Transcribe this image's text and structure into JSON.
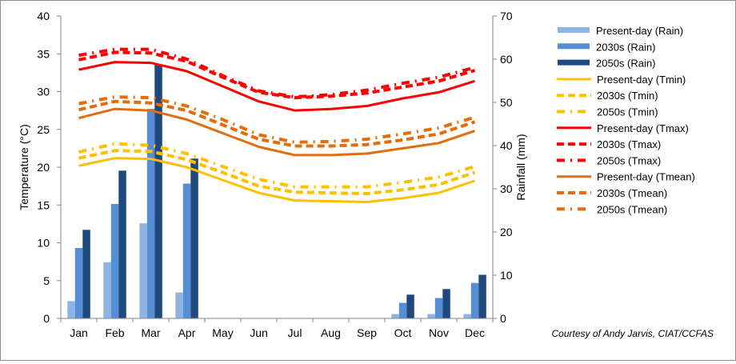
{
  "chart_data": {
    "type": "bar+line",
    "title": "",
    "categories": [
      "Jan",
      "Feb",
      "Mar",
      "Apr",
      "May",
      "Jun",
      "Jul",
      "Aug",
      "Sep",
      "Oct",
      "Nov",
      "Dec"
    ],
    "left_axis": {
      "label": "Temperature (°C)",
      "ylim": [
        0,
        40
      ],
      "ticks": [
        0,
        5,
        10,
        15,
        20,
        25,
        30,
        35,
        40
      ]
    },
    "right_axis": {
      "label": "Rainfall (mm)",
      "ylim": [
        0,
        70
      ],
      "ticks": [
        0,
        10,
        20,
        30,
        40,
        50,
        60,
        70
      ]
    },
    "grid": false,
    "legend_position": "right",
    "bar_series": [
      {
        "name": "Present-day (Rain)",
        "color": "#8db4e2",
        "axis": "right",
        "values": [
          4.0,
          13.0,
          22.0,
          6.0,
          0,
          0,
          0,
          0,
          0,
          1.0,
          1.0,
          1.0
        ]
      },
      {
        "name": "2030s (Rain)",
        "color": "#558ed5",
        "axis": "right",
        "values": [
          16.3,
          26.5,
          48.5,
          31.2,
          0,
          0,
          0,
          0,
          0,
          3.6,
          4.7,
          8.2
        ]
      },
      {
        "name": "2050s (Rain)",
        "color": "#1f497d",
        "axis": "right",
        "values": [
          20.5,
          34.2,
          58.8,
          37.0,
          0,
          0,
          0,
          0,
          0,
          5.5,
          6.8,
          10.1
        ]
      }
    ],
    "line_series": [
      {
        "name": "Present-day (Tmin)",
        "color": "#ffc000",
        "style": "solid",
        "axis": "left",
        "values": [
          20.2,
          21.2,
          21.1,
          20.0,
          18.3,
          16.6,
          15.6,
          15.5,
          15.4,
          15.9,
          16.6,
          18.2
        ]
      },
      {
        "name": "2030s (Tmin)",
        "color": "#ffc000",
        "style": "dash",
        "axis": "left",
        "values": [
          21.2,
          22.2,
          22.1,
          21.0,
          19.3,
          17.5,
          16.7,
          16.6,
          16.5,
          17.0,
          17.7,
          19.3
        ]
      },
      {
        "name": "2050s (Tmin)",
        "color": "#ffc000",
        "style": "dashdot",
        "axis": "left",
        "values": [
          22.0,
          23.1,
          22.9,
          21.8,
          20.1,
          18.4,
          17.4,
          17.4,
          17.4,
          18.0,
          18.7,
          20.1
        ]
      },
      {
        "name": "Present-day (Tmax)",
        "color": "#ff0000",
        "style": "solid",
        "axis": "left",
        "values": [
          32.9,
          33.9,
          33.8,
          32.7,
          30.7,
          28.7,
          27.5,
          27.7,
          28.1,
          29.1,
          29.9,
          31.4
        ]
      },
      {
        "name": "2030s (Tmax)",
        "color": "#ff0000",
        "style": "dash",
        "axis": "left",
        "values": [
          34.2,
          35.2,
          35.1,
          34.0,
          31.9,
          29.9,
          29.2,
          29.4,
          29.8,
          30.6,
          31.4,
          32.8
        ]
      },
      {
        "name": "2050s (Tmax)",
        "color": "#ff0000",
        "style": "dashdot",
        "axis": "left",
        "values": [
          34.8,
          35.6,
          35.6,
          34.3,
          32.1,
          30.1,
          29.3,
          29.6,
          30.2,
          31.1,
          31.9,
          33.2
        ]
      },
      {
        "name": "Present-day (Tmean)",
        "color": "#e46c0a",
        "style": "solid",
        "axis": "left",
        "values": [
          26.5,
          27.7,
          27.5,
          26.3,
          24.5,
          22.7,
          21.6,
          21.6,
          21.8,
          22.5,
          23.2,
          24.8
        ]
      },
      {
        "name": "2030s (Tmean)",
        "color": "#e46c0a",
        "style": "dash",
        "axis": "left",
        "values": [
          27.6,
          28.7,
          28.5,
          27.5,
          25.6,
          23.7,
          22.8,
          22.8,
          23.0,
          23.6,
          24.4,
          26.0
        ]
      },
      {
        "name": "2050s (Tmean)",
        "color": "#e46c0a",
        "style": "dashdot",
        "axis": "left",
        "values": [
          28.4,
          29.3,
          29.2,
          28.1,
          26.3,
          24.3,
          23.3,
          23.4,
          23.7,
          24.4,
          25.2,
          26.6
        ]
      }
    ],
    "annotations": [
      "Courtesy of Andy Jarvis, CIAT/CCFAS"
    ]
  }
}
